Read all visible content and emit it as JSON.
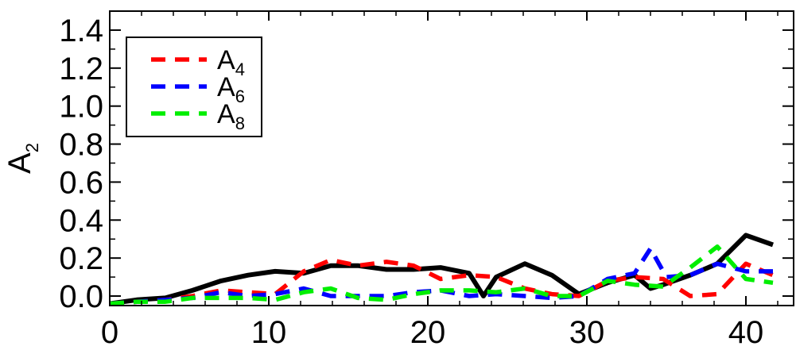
{
  "chart_data": {
    "type": "line",
    "title": "",
    "xlabel": "",
    "ylabel": {
      "main": "A",
      "sub": "2"
    },
    "xlim": [
      0,
      43
    ],
    "ylim": [
      -0.05,
      1.5
    ],
    "xticks": [
      0,
      10,
      20,
      30,
      40
    ],
    "xtick_labels": [
      "0",
      "10",
      "20",
      "30",
      "40"
    ],
    "yticks": [
      0.0,
      0.2,
      0.4,
      0.6,
      0.8,
      1.0,
      1.2,
      1.4
    ],
    "ytick_labels": [
      "0.0",
      "0.2",
      "0.4",
      "0.6",
      "0.8",
      "1.0",
      "1.2",
      "1.4"
    ],
    "grid": false,
    "legend_placement": "top-left",
    "series": [
      {
        "key": "A2",
        "color": "#000000",
        "style": "solid",
        "in_legend": false,
        "points": [
          [
            0,
            -0.04
          ],
          [
            1.7,
            -0.02
          ],
          [
            3.5,
            -0.01
          ],
          [
            5.2,
            0.03
          ],
          [
            7,
            0.08
          ],
          [
            8.7,
            0.11
          ],
          [
            10.4,
            0.13
          ],
          [
            12.2,
            0.12
          ],
          [
            13.9,
            0.16
          ],
          [
            15.6,
            0.16
          ],
          [
            17.4,
            0.14
          ],
          [
            19.1,
            0.14
          ],
          [
            20.8,
            0.15
          ],
          [
            22.6,
            0.12
          ],
          [
            23.5,
            0.0
          ],
          [
            24.3,
            0.1
          ],
          [
            26.1,
            0.17
          ],
          [
            27.8,
            0.11
          ],
          [
            29.5,
            0.01
          ],
          [
            31.3,
            0.07
          ],
          [
            33,
            0.11
          ],
          [
            34,
            0.04
          ],
          [
            34.8,
            0.06
          ],
          [
            36.5,
            0.11
          ],
          [
            38.2,
            0.17
          ],
          [
            40,
            0.32
          ],
          [
            41.7,
            0.27
          ]
        ]
      },
      {
        "key": "A4",
        "color": "#ff0000",
        "style": "dashed",
        "in_legend": true,
        "label_main": "A",
        "label_sub": "4",
        "points": [
          [
            0,
            -0.04
          ],
          [
            1.7,
            -0.03
          ],
          [
            3.5,
            -0.02
          ],
          [
            5.2,
            0.0
          ],
          [
            7,
            0.03
          ],
          [
            8.7,
            0.02
          ],
          [
            10.4,
            0.01
          ],
          [
            12.2,
            0.13
          ],
          [
            13.9,
            0.19
          ],
          [
            15.6,
            0.16
          ],
          [
            17.4,
            0.18
          ],
          [
            19.1,
            0.16
          ],
          [
            20.8,
            0.09
          ],
          [
            22.6,
            0.11
          ],
          [
            24.3,
            0.1
          ],
          [
            26.1,
            0.04
          ],
          [
            27.8,
            0.01
          ],
          [
            29.5,
            0.0
          ],
          [
            31.3,
            0.08
          ],
          [
            33,
            0.1
          ],
          [
            34.8,
            0.09
          ],
          [
            36.5,
            0.0
          ],
          [
            38.2,
            0.01
          ],
          [
            40,
            0.17
          ],
          [
            41.7,
            0.11
          ]
        ]
      },
      {
        "key": "A6",
        "color": "#0000ff",
        "style": "dashed",
        "in_legend": true,
        "label_main": "A",
        "label_sub": "6",
        "points": [
          [
            0,
            -0.04
          ],
          [
            1.7,
            -0.03
          ],
          [
            3.5,
            -0.02
          ],
          [
            5.2,
            -0.01
          ],
          [
            7,
            0.02
          ],
          [
            8.7,
            0.0
          ],
          [
            10.4,
            0.01
          ],
          [
            12.2,
            0.04
          ],
          [
            13.9,
            0.0
          ],
          [
            15.6,
            0.0
          ],
          [
            17.4,
            0.0
          ],
          [
            19.1,
            0.02
          ],
          [
            20.8,
            0.03
          ],
          [
            22.6,
            0.0
          ],
          [
            24.3,
            0.01
          ],
          [
            26.1,
            0.0
          ],
          [
            27.8,
            -0.01
          ],
          [
            29.5,
            0.0
          ],
          [
            31.3,
            0.09
          ],
          [
            33,
            0.12
          ],
          [
            34,
            0.25
          ],
          [
            35,
            0.1
          ],
          [
            36.5,
            0.11
          ],
          [
            38.2,
            0.17
          ],
          [
            40,
            0.13
          ],
          [
            41.7,
            0.13
          ]
        ]
      },
      {
        "key": "A8",
        "color": "#00ee00",
        "style": "dashed",
        "in_legend": true,
        "label_main": "A",
        "label_sub": "8",
        "points": [
          [
            0,
            -0.04
          ],
          [
            1.7,
            -0.03
          ],
          [
            3.5,
            -0.03
          ],
          [
            5.2,
            -0.01
          ],
          [
            7,
            -0.01
          ],
          [
            8.7,
            -0.01
          ],
          [
            10.4,
            -0.02
          ],
          [
            12.2,
            0.02
          ],
          [
            13.9,
            0.04
          ],
          [
            15.6,
            -0.01
          ],
          [
            17.4,
            -0.02
          ],
          [
            19.1,
            0.01
          ],
          [
            20.8,
            0.03
          ],
          [
            22.6,
            0.03
          ],
          [
            24.3,
            0.02
          ],
          [
            26.1,
            0.04
          ],
          [
            27.8,
            0.0
          ],
          [
            29.5,
            0.0
          ],
          [
            31.3,
            0.08
          ],
          [
            33,
            0.06
          ],
          [
            34.8,
            0.05
          ],
          [
            36.5,
            0.15
          ],
          [
            38.2,
            0.26
          ],
          [
            40,
            0.09
          ],
          [
            41.7,
            0.07
          ]
        ]
      }
    ]
  }
}
